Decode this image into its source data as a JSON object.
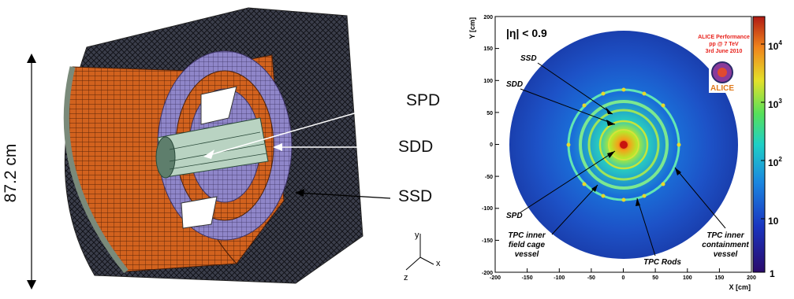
{
  "left": {
    "dimension_label": "87.2 cm",
    "labels": {
      "spd": "SPD",
      "sdd": "SDD",
      "ssd": "SSD"
    },
    "axes": {
      "x": "x",
      "y": "y",
      "z": "z"
    }
  },
  "right": {
    "eta_label": "|η| < 0.9",
    "banner": [
      "ALICE Performance",
      "pp @ 7 TeV",
      "3rd June 2010"
    ],
    "logo_text": "ALICE",
    "xlabel": "X [cm]",
    "ylabel": "Y [cm]",
    "xticks": [
      "-200",
      "-150",
      "-100",
      "-50",
      "0",
      "50",
      "100",
      "150",
      "200"
    ],
    "yticks": [
      "200",
      "150",
      "100",
      "50",
      "0",
      "-50",
      "-100",
      "-150",
      "-200"
    ],
    "annotations": {
      "ssd": "SSD",
      "sdd": "SDD",
      "spd": "SPD",
      "tpc_field_cage": [
        "TPC inner",
        "field cage",
        "vessel"
      ],
      "tpc_rods": "TPC Rods",
      "tpc_containment": [
        "TPC inner",
        "containment",
        "vessel"
      ]
    },
    "colorbar": {
      "base": "10",
      "exps": [
        "4",
        "3",
        "2"
      ],
      "ten": "10",
      "one": "1"
    }
  },
  "colors": {
    "orange": "#d2621e",
    "purple": "#6b5bb0",
    "banner_red": "#e8221c"
  }
}
